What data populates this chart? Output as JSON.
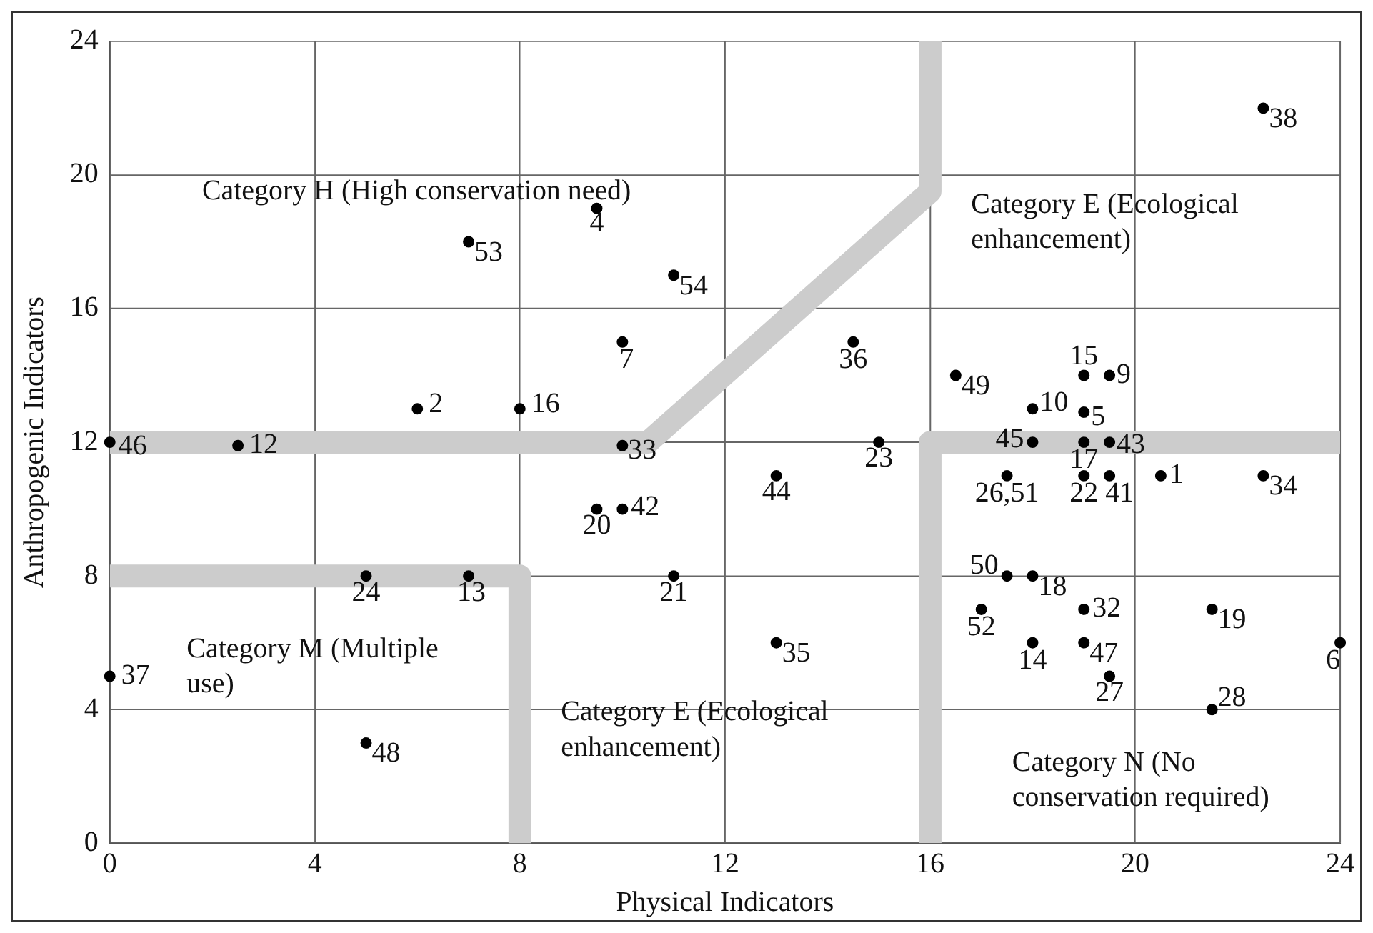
{
  "chart_data": {
    "type": "scatter",
    "xlabel": "Physical Indicators",
    "ylabel": "Anthropogenic Indicators",
    "xlim": [
      0,
      24
    ],
    "ylim": [
      0,
      24
    ],
    "xticks": [
      0,
      4,
      8,
      12,
      16,
      20,
      24
    ],
    "yticks": [
      0,
      4,
      8,
      12,
      16,
      20,
      24
    ],
    "grid": true,
    "marker": "circle",
    "series": [
      {
        "type": "scatter",
        "color": "#000000",
        "x": [
          20.5,
          6,
          9.5,
          19,
          24,
          10,
          19.5,
          18,
          2.5,
          7,
          18,
          19,
          8,
          19,
          18,
          21.5,
          9.5,
          11,
          19,
          15,
          5,
          17.5,
          19.5,
          21.5,
          19,
          10,
          22.5,
          13,
          14.5,
          0,
          22.5,
          19.5,
          10,
          19.5,
          13,
          18,
          0,
          19,
          5,
          16.5,
          17.5,
          17,
          7,
          11
        ],
        "values": [
          11,
          13,
          19,
          12.9,
          6,
          15,
          14,
          13,
          11.9,
          8,
          6,
          14,
          13,
          12,
          8,
          7,
          10,
          8,
          11,
          12,
          8,
          11,
          5,
          4,
          7,
          11.9,
          11,
          6,
          15,
          5,
          22,
          11,
          10,
          12,
          11,
          12,
          12,
          6,
          3,
          14,
          8,
          7,
          18,
          17
        ]
      },
      {
        "type": "line",
        "color": "#cccccc",
        "marker": "none",
        "x": [
          0,
          10.5,
          16,
          16
        ],
        "values": [
          12,
          12,
          19.5,
          24
        ]
      },
      {
        "type": "line",
        "color": "#cccccc",
        "marker": "none",
        "x": [
          16,
          16,
          24
        ],
        "values": [
          0,
          12,
          12
        ]
      },
      {
        "type": "line",
        "color": "#cccccc",
        "marker": "none",
        "x": [
          0,
          8,
          8
        ],
        "values": [
          8,
          8,
          0
        ]
      }
    ],
    "annotations": [
      "Category H (High conservation need)",
      "Category E (Ecological enhancement)",
      "Category M (Multiple use)",
      "Category E (Ecological enhancement)",
      "Category N (No conservation required)",
      {
        "text": "1",
        "x": 20.5,
        "y": 11
      },
      {
        "text": "2",
        "x": 6,
        "y": 13
      },
      {
        "text": "4",
        "x": 9.5,
        "y": 19
      },
      {
        "text": "5",
        "x": 19,
        "y": 12.9
      },
      {
        "text": "6",
        "x": 24,
        "y": 6
      },
      {
        "text": "7",
        "x": 10,
        "y": 15
      },
      {
        "text": "9",
        "x": 19.5,
        "y": 14
      },
      {
        "text": "10",
        "x": 18,
        "y": 13
      },
      {
        "text": "12",
        "x": 2.5,
        "y": 11.9
      },
      {
        "text": "13",
        "x": 7,
        "y": 8
      },
      {
        "text": "14",
        "x": 18,
        "y": 6
      },
      {
        "text": "15",
        "x": 19,
        "y": 14
      },
      {
        "text": "16",
        "x": 8,
        "y": 13
      },
      {
        "text": "17",
        "x": 19,
        "y": 12
      },
      {
        "text": "18",
        "x": 18,
        "y": 8
      },
      {
        "text": "19",
        "x": 21.5,
        "y": 7
      },
      {
        "text": "20",
        "x": 9.5,
        "y": 10
      },
      {
        "text": "21",
        "x": 11,
        "y": 8
      },
      {
        "text": "22",
        "x": 19,
        "y": 11
      },
      {
        "text": "23",
        "x": 15,
        "y": 12
      },
      {
        "text": "24",
        "x": 5,
        "y": 8
      },
      {
        "text": "26,51",
        "x": 17.5,
        "y": 11
      },
      {
        "text": "27",
        "x": 19.5,
        "y": 5
      },
      {
        "text": "28",
        "x": 21.5,
        "y": 4
      },
      {
        "text": "32",
        "x": 19,
        "y": 7
      },
      {
        "text": "33",
        "x": 10,
        "y": 11.9
      },
      {
        "text": "34",
        "x": 22.5,
        "y": 11
      },
      {
        "text": "35",
        "x": 13,
        "y": 6
      },
      {
        "text": "36",
        "x": 14.5,
        "y": 15
      },
      {
        "text": "37",
        "x": 0,
        "y": 5
      },
      {
        "text": "38",
        "x": 22.5,
        "y": 22
      },
      {
        "text": "41",
        "x": 19.5,
        "y": 11
      },
      {
        "text": "42",
        "x": 10,
        "y": 10
      },
      {
        "text": "43",
        "x": 19.5,
        "y": 12
      },
      {
        "text": "44",
        "x": 13,
        "y": 11
      },
      {
        "text": "45",
        "x": 18,
        "y": 12
      },
      {
        "text": "46",
        "x": 0,
        "y": 12
      },
      {
        "text": "47",
        "x": 19,
        "y": 6
      },
      {
        "text": "48",
        "x": 5,
        "y": 3
      },
      {
        "text": "49",
        "x": 16.5,
        "y": 14
      },
      {
        "text": "50",
        "x": 17.5,
        "y": 8
      },
      {
        "text": "52",
        "x": 17,
        "y": 7
      },
      {
        "text": "53",
        "x": 7,
        "y": 18
      },
      {
        "text": "54",
        "x": 11,
        "y": 17
      }
    ]
  }
}
